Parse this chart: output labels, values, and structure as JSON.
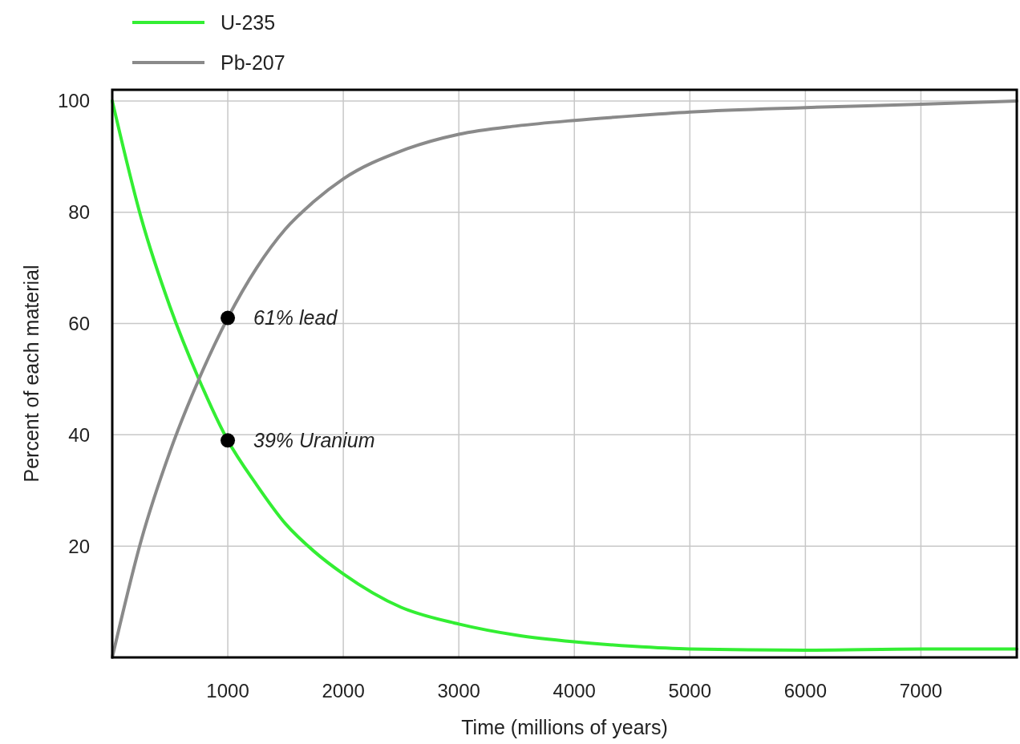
{
  "chart_data": {
    "type": "line",
    "xlabel": "Time (millions of years)",
    "ylabel": "Percent of each material",
    "xlim": [
      0,
      7830
    ],
    "ylim": [
      0,
      102
    ],
    "xticks": [
      1000,
      2000,
      3000,
      4000,
      5000,
      6000,
      7000
    ],
    "yticks": [
      20,
      40,
      60,
      80,
      100
    ],
    "grid": true,
    "legend": "top left",
    "marker": "none",
    "line_style": "solid",
    "series": [
      {
        "name": "U-235",
        "color": "#33ee33",
        "x": [
          0,
          250,
          500,
          750,
          1000,
          1250,
          1500,
          1750,
          2000,
          2500,
          3000,
          3500,
          4000,
          4500,
          5000,
          6000,
          7000,
          7830
        ],
        "values": [
          100,
          79,
          63,
          50,
          39,
          31,
          24,
          19,
          15,
          9,
          6,
          4,
          2.8,
          2,
          1.5,
          1.3,
          1.5,
          1.5
        ]
      },
      {
        "name": "Pb-207",
        "color": "#8a8a8a",
        "x": [
          0,
          250,
          500,
          750,
          1000,
          1250,
          1500,
          1750,
          2000,
          2500,
          3000,
          3500,
          4000,
          4500,
          5000,
          6000,
          7000,
          7830
        ],
        "values": [
          0,
          21,
          37,
          50,
          61,
          70,
          77,
          82,
          86,
          91,
          94,
          95.5,
          96.5,
          97.3,
          98,
          98.8,
          99.4,
          100
        ]
      }
    ],
    "annotations": [
      {
        "text": "61% lead",
        "x": 1000,
        "y": 61
      },
      {
        "text": "39% Uranium",
        "x": 1000,
        "y": 39
      }
    ]
  }
}
